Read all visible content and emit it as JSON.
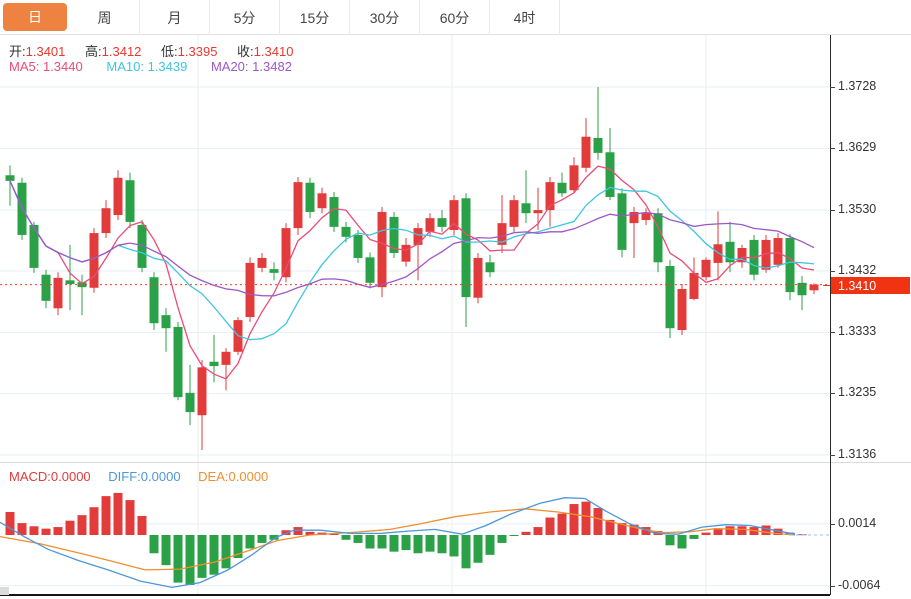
{
  "accent_color": "#ee8240",
  "tabs": {
    "items": [
      {
        "label": "日",
        "active": true
      },
      {
        "label": "周",
        "active": false
      },
      {
        "label": "月",
        "active": false
      },
      {
        "label": "5分",
        "active": false
      },
      {
        "label": "15分",
        "active": false
      },
      {
        "label": "30分",
        "active": false
      },
      {
        "label": "60分",
        "active": false
      },
      {
        "label": "4时",
        "active": false
      }
    ]
  },
  "main_info": {
    "ohlc": [
      {
        "label": "开:",
        "value": "1.3401"
      },
      {
        "label": "高:",
        "value": "1.3412"
      },
      {
        "label": "低:",
        "value": "1.3395"
      },
      {
        "label": "收:",
        "value": "1.3410"
      }
    ],
    "ma": [
      {
        "label": "MA5:",
        "value": "1.3440",
        "color": "#ec4b76"
      },
      {
        "label": "MA10:",
        "value": "1.3439",
        "color": "#3ec6dd"
      },
      {
        "label": "MA20:",
        "value": "1.3482",
        "color": "#9c57c6"
      }
    ]
  },
  "macd_info": [
    {
      "label": "MACD:",
      "value": "0.0000",
      "color": "#e23b3b"
    },
    {
      "label": "DIFF:",
      "value": "0.0000",
      "color": "#4d96db"
    },
    {
      "label": "DEA:",
      "value": "0.0000",
      "color": "#ef8f2f"
    }
  ],
  "price_axis": {
    "labels": [
      "1.3728",
      "1.3629",
      "1.3530",
      "1.3432",
      "1.3333",
      "1.3235",
      "1.3136"
    ],
    "badge": "1.3410"
  },
  "macd_axis": {
    "labels": [
      "0.0014",
      "-0.0064"
    ]
  },
  "colors": {
    "up": "#e23b3b",
    "down": "#2aa147",
    "ma5": "#ec4b76",
    "ma10": "#3ec6dd",
    "ma20": "#9c57c6",
    "diff": "#4d96db",
    "dea": "#ef8f2f",
    "grid": "#e8eff6",
    "price_line": "#ff3b30",
    "zero_dash": "#8fc6e8"
  },
  "chart_data": {
    "type": "candlestick",
    "title": "",
    "price_panel": {
      "ylim": [
        1.3136,
        1.3728
      ],
      "yticks": [
        1.3728,
        1.3629,
        1.353,
        1.3432,
        1.3333,
        1.3235,
        1.3136
      ],
      "current_price": 1.341,
      "ohlc_readout": {
        "open": 1.3401,
        "high": 1.3412,
        "low": 1.3395,
        "close": 1.341
      },
      "ma_readout": {
        "ma5": 1.344,
        "ma10": 1.3439,
        "ma20": 1.3482
      },
      "ma_periods": [
        5,
        10,
        20
      ],
      "candles_format": [
        "open",
        "high",
        "low",
        "close"
      ],
      "candles": [
        [
          1.3586,
          1.3602,
          1.3537,
          1.3577
        ],
        [
          1.3574,
          1.3582,
          1.3482,
          1.349
        ],
        [
          1.3506,
          1.3511,
          1.3429,
          1.3437
        ],
        [
          1.3426,
          1.3434,
          1.3372,
          1.3384
        ],
        [
          1.3372,
          1.343,
          1.3361,
          1.3421
        ],
        [
          1.3417,
          1.3474,
          1.3369,
          1.3411
        ],
        [
          1.3414,
          1.3426,
          1.3361,
          1.3406
        ],
        [
          1.3405,
          1.3501,
          1.3397,
          1.3493
        ],
        [
          1.3493,
          1.3546,
          1.3485,
          1.3533
        ],
        [
          1.3522,
          1.3594,
          1.3514,
          1.3582
        ],
        [
          1.3578,
          1.359,
          1.3501,
          1.3511
        ],
        [
          1.3506,
          1.3514,
          1.343,
          1.3437
        ],
        [
          1.3422,
          1.343,
          1.3337,
          1.3348
        ],
        [
          1.3361,
          1.3372,
          1.3302,
          1.334
        ],
        [
          1.3342,
          1.335,
          1.3224,
          1.3229
        ],
        [
          1.3236,
          1.3281,
          1.3184,
          1.3205
        ],
        [
          1.32,
          1.3289,
          1.3144,
          1.3277
        ],
        [
          1.3286,
          1.3329,
          1.3253,
          1.3279
        ],
        [
          1.3281,
          1.3308,
          1.324,
          1.3302
        ],
        [
          1.3302,
          1.3358,
          1.3297,
          1.3353
        ],
        [
          1.3358,
          1.3454,
          1.335,
          1.3445
        ],
        [
          1.3437,
          1.3461,
          1.343,
          1.3453
        ],
        [
          1.3435,
          1.3446,
          1.3417,
          1.3429
        ],
        [
          1.3422,
          1.3509,
          1.3414,
          1.3501
        ],
        [
          1.3501,
          1.3583,
          1.349,
          1.3575
        ],
        [
          1.3574,
          1.3582,
          1.3517,
          1.3527
        ],
        [
          1.3533,
          1.3566,
          1.3525,
          1.3557
        ],
        [
          1.3551,
          1.3559,
          1.3495,
          1.3503
        ],
        [
          1.3503,
          1.3511,
          1.3478,
          1.3487
        ],
        [
          1.349,
          1.3498,
          1.3445,
          1.3453
        ],
        [
          1.3454,
          1.3462,
          1.3404,
          1.3413
        ],
        [
          1.3406,
          1.3535,
          1.339,
          1.3527
        ],
        [
          1.3519,
          1.3527,
          1.3453,
          1.3461
        ],
        [
          1.3447,
          1.3485,
          1.3439,
          1.3474
        ],
        [
          1.3474,
          1.3509,
          1.3417,
          1.3501
        ],
        [
          1.3495,
          1.3525,
          1.3487,
          1.3517
        ],
        [
          1.3517,
          1.353,
          1.3495,
          1.3503
        ],
        [
          1.3498,
          1.3554,
          1.349,
          1.3546
        ],
        [
          1.3549,
          1.3557,
          1.3342,
          1.339
        ],
        [
          1.3389,
          1.3461,
          1.338,
          1.3453
        ],
        [
          1.3446,
          1.3458,
          1.3422,
          1.343
        ],
        [
          1.3474,
          1.3554,
          1.3461,
          1.3509
        ],
        [
          1.3503,
          1.3554,
          1.3495,
          1.3546
        ],
        [
          1.3541,
          1.3594,
          1.3509,
          1.3525
        ],
        [
          1.3525,
          1.3566,
          1.3498,
          1.353
        ],
        [
          1.353,
          1.3583,
          1.3503,
          1.3575
        ],
        [
          1.3574,
          1.359,
          1.3551,
          1.3557
        ],
        [
          1.3562,
          1.3615,
          1.3557,
          1.3602
        ],
        [
          1.3598,
          1.3678,
          1.3591,
          1.3648
        ],
        [
          1.3646,
          1.3728,
          1.3611,
          1.3622
        ],
        [
          1.3623,
          1.3662,
          1.3546,
          1.3551
        ],
        [
          1.3557,
          1.3565,
          1.3454,
          1.3466
        ],
        [
          1.3509,
          1.3535,
          1.3453,
          1.3527
        ],
        [
          1.3514,
          1.3533,
          1.3506,
          1.3525
        ],
        [
          1.3525,
          1.3533,
          1.343,
          1.3446
        ],
        [
          1.344,
          1.345,
          1.3324,
          1.334
        ],
        [
          1.3337,
          1.3411,
          1.3329,
          1.3403
        ],
        [
          1.3387,
          1.3454,
          1.3385,
          1.3429
        ],
        [
          1.3422,
          1.3454,
          1.3417,
          1.345
        ],
        [
          1.3445,
          1.3528,
          1.3417,
          1.3475
        ],
        [
          1.3479,
          1.3511,
          1.343,
          1.3446
        ],
        [
          1.3446,
          1.3474,
          1.3437,
          1.3469
        ],
        [
          1.3482,
          1.349,
          1.3417,
          1.3426
        ],
        [
          1.3434,
          1.349,
          1.3429,
          1.3482
        ],
        [
          1.3442,
          1.3493,
          1.3437,
          1.3485
        ],
        [
          1.3485,
          1.3491,
          1.3385,
          1.3398
        ],
        [
          1.3413,
          1.3424,
          1.3369,
          1.3393
        ],
        [
          1.3401,
          1.3412,
          1.3395,
          1.341
        ]
      ]
    },
    "macd_panel": {
      "type": "bar",
      "yticks": [
        0.0014,
        -0.0064
      ],
      "values": {
        "macd": 0.0,
        "diff": 0.0,
        "dea": 0.0
      },
      "hist": [
        0.0029,
        0.0015,
        0.0011,
        0.0008,
        0.001,
        0.0018,
        0.0025,
        0.0035,
        0.0049,
        0.0053,
        0.0044,
        0.0024,
        -0.0023,
        -0.0038,
        -0.006,
        -0.0063,
        -0.0054,
        -0.005,
        -0.0042,
        -0.0029,
        -0.0017,
        -0.001,
        -0.0006,
        0.0006,
        0.001,
        0.0004,
        0.0003,
        0.0002,
        -0.0006,
        -0.001,
        -0.0017,
        -0.0017,
        -0.0021,
        -0.0019,
        -0.0023,
        -0.0021,
        -0.0023,
        -0.0027,
        -0.0042,
        -0.0035,
        -0.0025,
        -0.001,
        -0.0001,
        0.0004,
        0.001,
        0.0022,
        0.0027,
        0.0039,
        0.0042,
        0.0034,
        0.0019,
        0.0015,
        0.0013,
        0.001,
        0.0005,
        -0.0013,
        -0.0017,
        -0.0005,
        0.0003,
        0.0007,
        0.0011,
        0.0011,
        0.001,
        0.0012,
        0.0008,
        0.0003,
        0.0001,
        0.0
      ],
      "diff_points": [
        [
          0,
          0.0016
        ],
        [
          24,
          -0.0002
        ],
        [
          48,
          -0.0018
        ],
        [
          78,
          -0.0032
        ],
        [
          108,
          -0.0044
        ],
        [
          140,
          -0.0058
        ],
        [
          172,
          -0.0066
        ],
        [
          200,
          -0.006
        ],
        [
          228,
          -0.0044
        ],
        [
          252,
          -0.0025
        ],
        [
          276,
          -0.0003
        ],
        [
          294,
          0.0006
        ],
        [
          320,
          0.0006
        ],
        [
          350,
          0.0002
        ],
        [
          380,
          0.0002
        ],
        [
          410,
          0.0005
        ],
        [
          435,
          0.0007
        ],
        [
          462,
          0.0001
        ],
        [
          486,
          0.0012
        ],
        [
          510,
          0.0026
        ],
        [
          540,
          0.004
        ],
        [
          565,
          0.0047
        ],
        [
          585,
          0.0046
        ],
        [
          606,
          0.003
        ],
        [
          630,
          0.0014
        ],
        [
          655,
          0.0002
        ],
        [
          678,
          0.0001
        ],
        [
          702,
          0.001
        ],
        [
          726,
          0.0013
        ],
        [
          750,
          0.0012
        ],
        [
          774,
          0.0006
        ],
        [
          795,
          0.0001
        ]
      ],
      "dea_points": [
        [
          0,
          -0.0002
        ],
        [
          40,
          -0.0011
        ],
        [
          80,
          -0.0023
        ],
        [
          112,
          -0.0033
        ],
        [
          145,
          -0.0044
        ],
        [
          180,
          -0.0043
        ],
        [
          215,
          -0.0034
        ],
        [
          250,
          -0.0019
        ],
        [
          277,
          -0.0007
        ],
        [
          310,
          0.0
        ],
        [
          350,
          0.0003
        ],
        [
          390,
          0.0007
        ],
        [
          420,
          0.0014
        ],
        [
          455,
          0.0023
        ],
        [
          490,
          0.0029
        ],
        [
          525,
          0.0033
        ],
        [
          558,
          0.0029
        ],
        [
          590,
          0.0023
        ],
        [
          610,
          0.0017
        ],
        [
          640,
          0.0008
        ],
        [
          662,
          0.0003
        ],
        [
          690,
          0.0004
        ],
        [
          715,
          0.0008
        ],
        [
          745,
          0.0007
        ],
        [
          775,
          0.0002
        ],
        [
          795,
          0.0
        ]
      ]
    }
  }
}
